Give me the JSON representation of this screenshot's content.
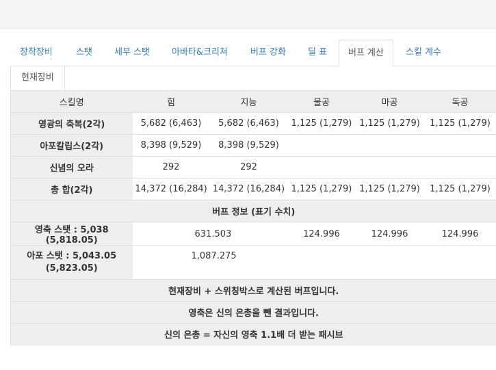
{
  "tabs": [
    {
      "label": "장착장비",
      "active": false
    },
    {
      "label": "스탯",
      "active": false
    },
    {
      "label": "세부 스탯",
      "active": false
    },
    {
      "label": "아바타&크리쳐",
      "active": false
    },
    {
      "label": "버프 강화",
      "active": false
    },
    {
      "label": "딜 표",
      "active": false
    },
    {
      "label": "버프 계산",
      "active": true
    },
    {
      "label": "스킬 계수",
      "active": false
    }
  ],
  "subtab": {
    "label": "현재장비"
  },
  "table": {
    "headers": [
      "스킬명",
      "힘",
      "지능",
      "물공",
      "마공",
      "독공"
    ],
    "rows": [
      {
        "name": "영광의 축복(2각)",
        "cells": [
          "5,682 (6,463)",
          "5,682 (6,463)",
          "1,125 (1,279)",
          "1,125 (1,279)",
          "1,125 (1,279)"
        ]
      },
      {
        "name": "아포칼립스(2각)",
        "cells": [
          "8,398 (9,529)",
          "8,398 (9,529)",
          "",
          "",
          ""
        ]
      },
      {
        "name": "신념의 오라",
        "cells": [
          "292",
          "292",
          "",
          "",
          ""
        ]
      },
      {
        "name": "총 합(2각)",
        "cells": [
          "14,372 (16,284)",
          "14,372 (16,284)",
          "1,125 (1,279)",
          "1,125 (1,279)",
          "1,125 (1,279)"
        ]
      }
    ],
    "section_title": "버프 정보 (표기 수치)",
    "buff_rows": [
      {
        "name": "영축 스탯 : 5,038 (5,818.05)",
        "stat": "631.503",
        "phys": "124.996",
        "mag": "124.996",
        "ind": "124.996"
      },
      {
        "name_line1": "아포 스탯 : 5,043.05",
        "name_line2": "(5,823.05)",
        "stat": "1,087.275",
        "phys": "",
        "mag": "",
        "ind": ""
      }
    ],
    "notes": [
      "현재장비 + 스위칭박스로 계산된 버프입니다.",
      "영축은 신의 은총을 뺀 결과입니다.",
      "신의 은총 = 자신의 영축 1.1배 더 받는 패시브"
    ]
  }
}
